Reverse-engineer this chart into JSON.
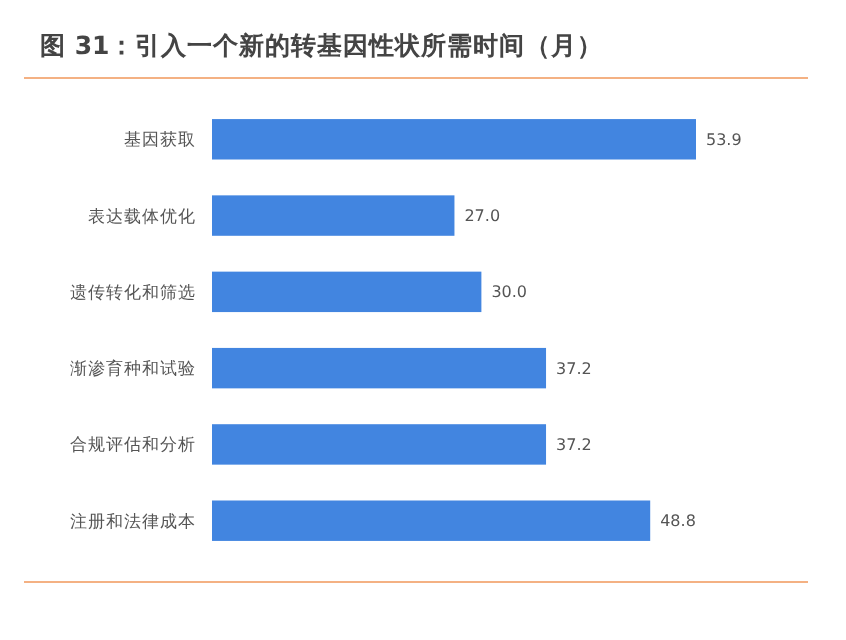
{
  "chart_data": {
    "type": "bar",
    "orientation": "horizontal",
    "title": "图 31：引入一个新的转基因性状所需时间（月）",
    "categories": [
      "基因获取",
      "表达载体优化",
      "遗传转化和筛选",
      "渐渗育种和试验",
      "合规评估和分析",
      "注册和法律成本"
    ],
    "values": [
      53.9,
      27.0,
      30.0,
      37.2,
      37.2,
      48.8
    ],
    "value_labels": [
      "53.9",
      "27.0",
      "30.0",
      "37.2",
      "37.2",
      "48.8"
    ],
    "color": "#4285e0"
  }
}
